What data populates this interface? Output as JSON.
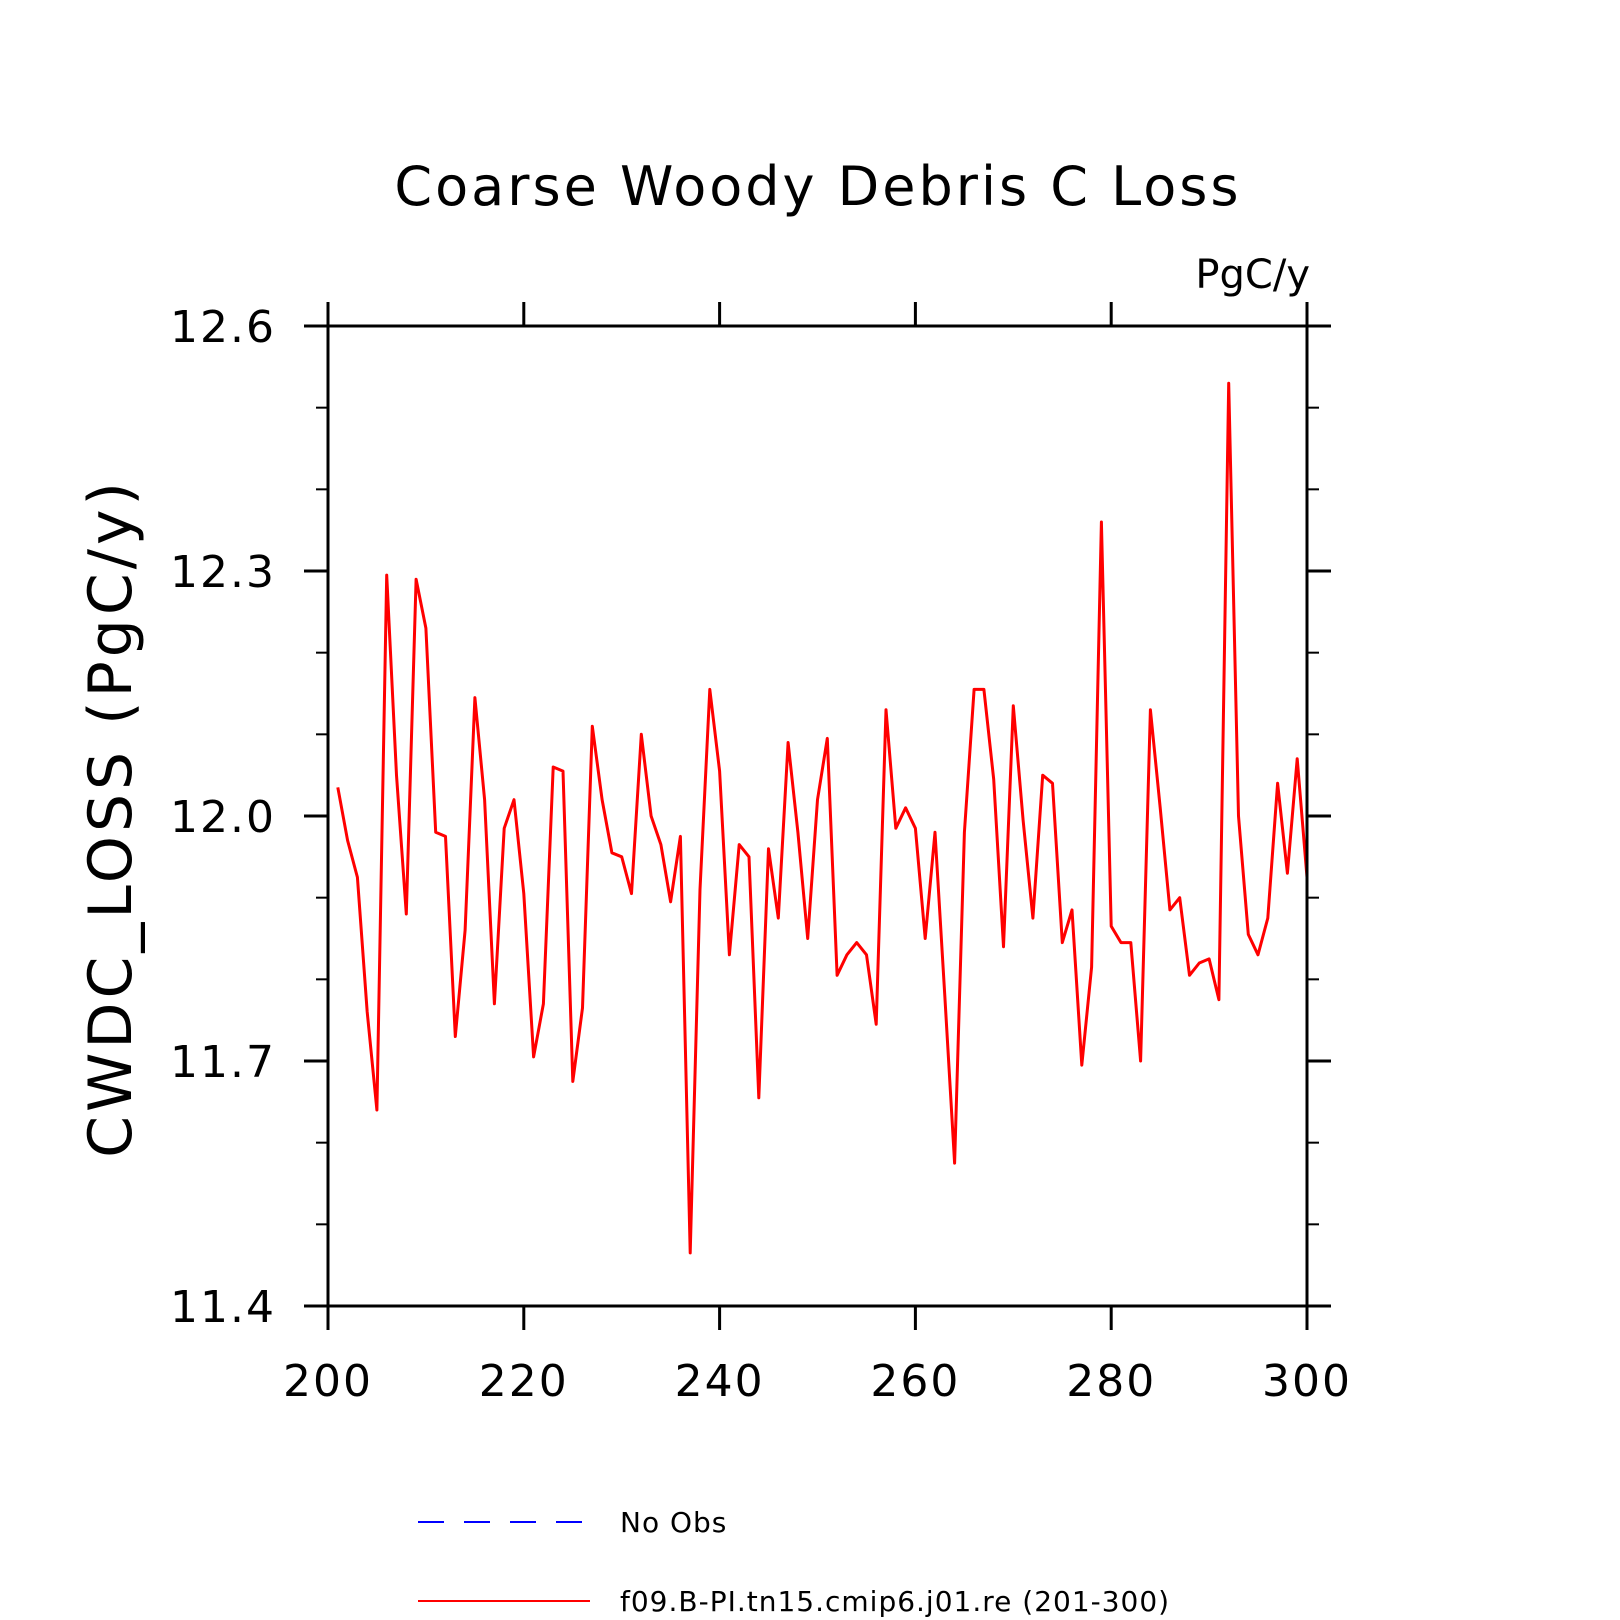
{
  "chart_data": {
    "type": "line",
    "title": "Coarse Woody Debris C Loss",
    "units_label": "PgC/y",
    "ylabel": "CWDC_LOSS  (PgC/y)",
    "xlabel": "",
    "xlim": [
      200,
      300
    ],
    "ylim": [
      11.4,
      12.6
    ],
    "x_ticks": [
      200,
      220,
      240,
      260,
      280,
      300
    ],
    "x_tick_labels": [
      "200",
      "220",
      "240",
      "260",
      "280",
      "300"
    ],
    "x_minor_step": 20,
    "y_ticks": [
      11.4,
      11.7,
      12.0,
      12.3,
      12.6
    ],
    "y_tick_labels": [
      "11.4",
      "11.7",
      "12.0",
      "12.3",
      "12.6"
    ],
    "y_minor_step": 0.1,
    "grid": false,
    "legend_position": "bottom",
    "series": [
      {
        "name": "No Obs",
        "color": "#0000ff",
        "style": "dashed",
        "x": [],
        "y": []
      },
      {
        "name": "f09.B-PI.tn15.cmip6.j01.re (201-300)",
        "color": "#ff0000",
        "style": "solid",
        "x": [
          201,
          202,
          203,
          204,
          205,
          206,
          207,
          208,
          209,
          210,
          211,
          212,
          213,
          214,
          215,
          216,
          217,
          218,
          219,
          220,
          221,
          222,
          223,
          224,
          225,
          226,
          227,
          228,
          229,
          230,
          231,
          232,
          233,
          234,
          235,
          236,
          237,
          238,
          239,
          240,
          241,
          242,
          243,
          244,
          245,
          246,
          247,
          248,
          249,
          250,
          251,
          252,
          253,
          254,
          255,
          256,
          257,
          258,
          259,
          260,
          261,
          262,
          263,
          264,
          265,
          266,
          267,
          268,
          269,
          270,
          271,
          272,
          273,
          274,
          275,
          276,
          277,
          278,
          279,
          280,
          281,
          282,
          283,
          284,
          285,
          286,
          287,
          288,
          289,
          290,
          291,
          292,
          293,
          294,
          295,
          296,
          297,
          298,
          299,
          300
        ],
        "y": [
          12.035,
          11.97,
          11.925,
          11.76,
          11.64,
          12.295,
          12.05,
          11.88,
          12.29,
          12.23,
          11.98,
          11.975,
          11.73,
          11.86,
          12.145,
          12.02,
          11.77,
          11.985,
          12.02,
          11.905,
          11.705,
          11.77,
          12.06,
          12.055,
          11.675,
          11.765,
          12.11,
          12.02,
          11.955,
          11.95,
          11.905,
          12.1,
          12.0,
          11.965,
          11.895,
          11.975,
          11.465,
          11.91,
          12.155,
          12.055,
          11.83,
          11.965,
          11.95,
          11.655,
          11.96,
          11.875,
          12.09,
          11.98,
          11.85,
          12.02,
          12.095,
          11.805,
          11.83,
          11.845,
          11.83,
          11.745,
          12.13,
          11.985,
          12.01,
          11.985,
          11.85,
          11.98,
          11.78,
          11.575,
          11.98,
          12.155,
          12.155,
          12.045,
          11.84,
          12.135,
          11.995,
          11.875,
          12.05,
          12.04,
          11.845,
          11.885,
          11.695,
          11.815,
          12.36,
          11.865,
          11.845,
          11.845,
          11.7,
          12.13,
          12.01,
          11.885,
          11.9,
          11.805,
          11.82,
          11.825,
          11.775,
          12.53,
          12.0,
          11.855,
          11.83,
          11.875,
          12.04,
          11.93,
          12.07,
          11.925
        ]
      }
    ]
  }
}
